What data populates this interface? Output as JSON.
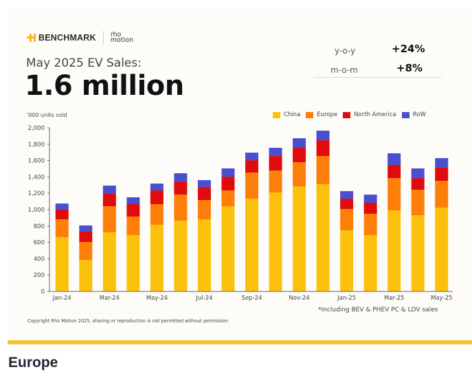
{
  "logo": {
    "brand": "BENCHMARK",
    "partner_line1": "rho",
    "partner_line2": "motion"
  },
  "header": {
    "subtitle": "May 2025 EV Sales:",
    "headline": "1.6 million"
  },
  "stats": [
    {
      "label": "y-o-y",
      "value": "+24%"
    },
    {
      "label": "m-o-m",
      "value": "+8%"
    }
  ],
  "colors": {
    "China": "#fcc10c",
    "Europe": "#fd7f0a",
    "North America": "#e00b0b",
    "RoW": "#4a4fd0",
    "accent": "#f3c22e",
    "axis": "#555555"
  },
  "chart_data": {
    "type": "bar",
    "stacked": true,
    "ylabel": "'000 units sold",
    "ylim": [
      0,
      2000
    ],
    "yticks": [
      0,
      200,
      400,
      600,
      800,
      1000,
      1200,
      1400,
      1600,
      1800,
      2000
    ],
    "ytick_labels": [
      "0",
      "200",
      "400",
      "600",
      "800",
      "1,000",
      "1,200",
      "1,400",
      "1,600",
      "1,800",
      "2,000"
    ],
    "categories": [
      "Jan-24",
      "Feb-24",
      "Mar-24",
      "Apr-24",
      "May-24",
      "Jun-24",
      "Jul-24",
      "Aug-24",
      "Sep-24",
      "Oct-24",
      "Nov-24",
      "Dec-24",
      "Jan-25",
      "Feb-25",
      "Mar-25",
      "Apr-25",
      "May-25"
    ],
    "xtick_labels": [
      "Jan-24",
      "",
      "Mar-24",
      "",
      "May-24",
      "",
      "Jul-24",
      "",
      "Sep-24",
      "",
      "Nov-24",
      "",
      "Jan-25",
      "",
      "Mar-25",
      "",
      "May-25"
    ],
    "legend_position": "top-right",
    "series": [
      {
        "name": "China",
        "values": [
          664,
          386,
          723,
          689,
          815,
          865,
          882,
          1042,
          1134,
          1210,
          1285,
          1310,
          748,
          689,
          991,
          932,
          1025
        ]
      },
      {
        "name": "Europe",
        "values": [
          218,
          219,
          319,
          227,
          252,
          320,
          235,
          193,
          319,
          268,
          294,
          345,
          260,
          260,
          395,
          311,
          327
        ]
      },
      {
        "name": "North America",
        "values": [
          118,
          126,
          151,
          151,
          168,
          159,
          160,
          168,
          151,
          177,
          177,
          193,
          126,
          135,
          160,
          143,
          160
        ]
      },
      {
        "name": "RoW",
        "values": [
          75,
          76,
          101,
          84,
          84,
          101,
          84,
          101,
          93,
          101,
          117,
          118,
          92,
          100,
          143,
          118,
          118
        ]
      }
    ]
  },
  "note": "*Including BEV & PHEV PC & LDV sales",
  "copyright": "Copyright Rho Motion 2025, sharing or reproduction is not permitted without permission",
  "section": {
    "title": "Europe"
  }
}
